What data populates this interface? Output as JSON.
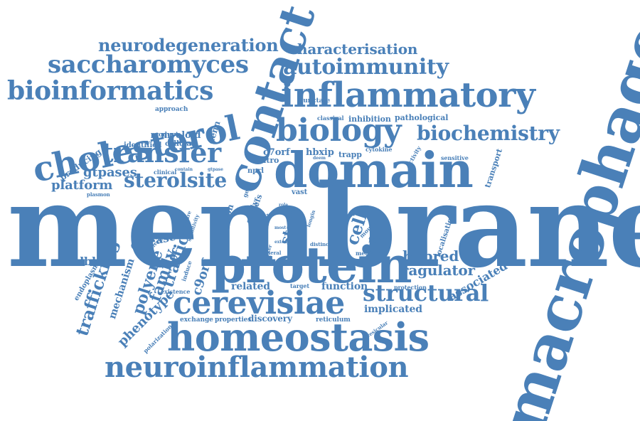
{
  "palette": {
    "word": "#4a80b8"
  },
  "words": [
    {
      "id": "membrane",
      "text": "membrane"
    },
    {
      "id": "macrophage",
      "text": "macrophage"
    },
    {
      "id": "domain",
      "text": "domain"
    },
    {
      "id": "protein",
      "text": "protein"
    },
    {
      "id": "contact",
      "text": "contact"
    },
    {
      "id": "homeostasis",
      "text": "homeostasis"
    },
    {
      "id": "inflammatory",
      "text": "inflammatory"
    },
    {
      "id": "cholesterol",
      "text": "cholesterol"
    },
    {
      "id": "biology",
      "text": "biology"
    },
    {
      "id": "cerevisiae",
      "text": "cerevisiae"
    },
    {
      "id": "neuroinflammation",
      "text": "neuroinflammation"
    },
    {
      "id": "transfer",
      "text": "transfer"
    },
    {
      "id": "bioinformatics",
      "text": "bioinformatics"
    },
    {
      "id": "saccharomyces",
      "text": "saccharomyces"
    },
    {
      "id": "structural",
      "text": "structural"
    },
    {
      "id": "biochemistry",
      "text": "biochemistry"
    },
    {
      "id": "autoimmunity",
      "text": "autoimmunity"
    },
    {
      "id": "neurodegeneration",
      "text": "neurodegeneration"
    },
    {
      "id": "sterolsite",
      "text": "sterolsite"
    },
    {
      "id": "characterisation",
      "text": "characterisation"
    },
    {
      "id": "trafficking",
      "text": "trafficking"
    },
    {
      "id": "polyene",
      "text": "polyene"
    },
    {
      "id": "family",
      "text": "family"
    },
    {
      "id": "traffic",
      "text": "traffic"
    },
    {
      "id": "ragulator",
      "text": "ragulator"
    },
    {
      "id": "hhpred",
      "text": "hhpred"
    },
    {
      "id": "cell",
      "text": "cell"
    },
    {
      "id": "start",
      "text": "start"
    },
    {
      "id": "c9orf",
      "text": "c9orf"
    },
    {
      "id": "gtpases",
      "text": "gtpases"
    },
    {
      "id": "platform",
      "text": "platform"
    },
    {
      "id": "phenotype",
      "text": "phenotype"
    },
    {
      "id": "roadblock",
      "text": "roadblock"
    },
    {
      "id": "associated",
      "text": "associated"
    },
    {
      "id": "mechanism",
      "text": "mechanism"
    },
    {
      "id": "disease",
      "text": "disease"
    },
    {
      "id": "related",
      "text": "related"
    },
    {
      "id": "function",
      "text": "function"
    },
    {
      "id": "implicated",
      "text": "implicated"
    },
    {
      "id": "discovery",
      "text": "discovery"
    },
    {
      "id": "myeloid",
      "text": "myeloid"
    },
    {
      "id": "c7orf",
      "text": "c7orf"
    },
    {
      "id": "hbxip",
      "text": "hbxip"
    },
    {
      "id": "producing",
      "text": "producing"
    },
    {
      "id": "junction",
      "text": "junction"
    },
    {
      "id": "denn",
      "text": "denn"
    },
    {
      "id": "vitro",
      "text": "vitro"
    },
    {
      "id": "trapp",
      "text": "trapp"
    },
    {
      "id": "inhibition",
      "text": "inhibition"
    },
    {
      "id": "pathological",
      "text": "pathological"
    },
    {
      "id": "transport",
      "text": "transport"
    },
    {
      "id": "endoplasmic",
      "text": "endoplasmic"
    },
    {
      "id": "gefs",
      "text": "gefs"
    },
    {
      "id": "study",
      "text": "study"
    },
    {
      "id": "nprl",
      "text": "nprl"
    },
    {
      "id": "vast",
      "text": "vast"
    },
    {
      "id": "form",
      "text": "form"
    },
    {
      "id": "localisation",
      "text": "localisation"
    },
    {
      "id": "identified",
      "text": "identified"
    },
    {
      "id": "cellular",
      "text": "cellular"
    },
    {
      "id": "product",
      "text": "product"
    },
    {
      "id": "approach",
      "text": "approach"
    },
    {
      "id": "punctate",
      "text": "punctate"
    },
    {
      "id": "classical",
      "text": "classical"
    },
    {
      "id": "cytokine",
      "text": "cytokine"
    },
    {
      "id": "activity",
      "text": "activity"
    },
    {
      "id": "sensitive",
      "text": "sensitive"
    },
    {
      "id": "clinical",
      "text": "clinical"
    },
    {
      "id": "properties",
      "text": "properties"
    },
    {
      "id": "exchange",
      "text": "exchange"
    },
    {
      "id": "reticulum",
      "text": "reticulum"
    },
    {
      "id": "protection",
      "text": "protection"
    },
    {
      "id": "mediate",
      "text": "mediate"
    },
    {
      "id": "polarization",
      "text": "polarization"
    },
    {
      "id": "existence",
      "text": "existence"
    },
    {
      "id": "target",
      "text": "target"
    },
    {
      "id": "induce",
      "text": "induce"
    },
    {
      "id": "sensitivity",
      "text": "sensitivity"
    },
    {
      "id": "structure",
      "text": "structure"
    },
    {
      "id": "delivery",
      "text": "delivery"
    },
    {
      "id": "general",
      "text": "general"
    },
    {
      "id": "yeast",
      "text": "yeast"
    },
    {
      "id": "distinct",
      "text": "distinct"
    },
    {
      "id": "mouse",
      "text": "mouse"
    },
    {
      "id": "longin",
      "text": "longin"
    },
    {
      "id": "plasmon",
      "text": "plasmon"
    },
    {
      "id": "vesicular",
      "text": "vesicular"
    },
    {
      "id": "marker",
      "text": "marker"
    },
    {
      "id": "gene",
      "text": "gene"
    },
    {
      "id": "contain",
      "text": "contain"
    },
    {
      "id": "gtpase",
      "text": "gtpase"
    },
    {
      "id": "most",
      "text": "most"
    },
    {
      "id": "role",
      "text": "role"
    },
    {
      "id": "need",
      "text": "need"
    },
    {
      "id": "extent",
      "text": "extent"
    },
    {
      "id": "deem",
      "text": "deem"
    }
  ]
}
